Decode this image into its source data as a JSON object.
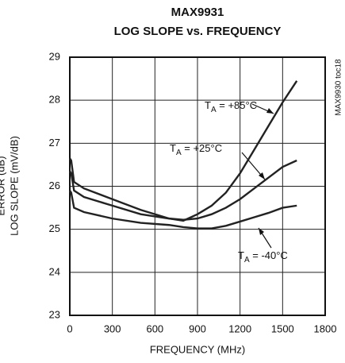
{
  "chart_data": {
    "type": "line",
    "title": "MAX9931",
    "subtitle": "LOG SLOPE vs. FREQUENCY",
    "x_label": "FREQUENCY (MHz)",
    "y_label": "LOG SLOPE (mV/dB)",
    "y_label_2": "ERROR (dB)",
    "side_note": "MAX9930 toc18",
    "x": [
      0,
      10,
      30,
      100,
      300,
      500,
      700,
      800,
      900,
      1000,
      1100,
      1200,
      1300,
      1400,
      1500,
      1600
    ],
    "series": [
      {
        "name": "TA = +85°C",
        "color": "#222222",
        "values": [
          26.65,
          26.6,
          26.1,
          25.95,
          25.7,
          25.45,
          25.25,
          25.2,
          25.35,
          25.55,
          25.85,
          26.3,
          26.85,
          27.4,
          27.95,
          28.45
        ]
      },
      {
        "name": "TA = +25°C",
        "color": "#222222",
        "values": [
          26.35,
          26.3,
          25.9,
          25.75,
          25.55,
          25.35,
          25.25,
          25.22,
          25.25,
          25.35,
          25.5,
          25.7,
          25.95,
          26.2,
          26.45,
          26.6
        ]
      },
      {
        "name": "TA = -40°C",
        "color": "#222222",
        "values": [
          25.9,
          25.85,
          25.5,
          25.4,
          25.25,
          25.15,
          25.1,
          25.05,
          25.02,
          25.02,
          25.08,
          25.18,
          25.28,
          25.38,
          25.5,
          25.55
        ]
      }
    ],
    "xlim": [
      0,
      1800
    ],
    "xticks": [
      0,
      300,
      600,
      900,
      1200,
      1500,
      1800
    ],
    "ylim": [
      23,
      29
    ],
    "yticks": [
      23,
      24,
      25,
      26,
      27,
      28,
      29
    ],
    "grid": true
  }
}
